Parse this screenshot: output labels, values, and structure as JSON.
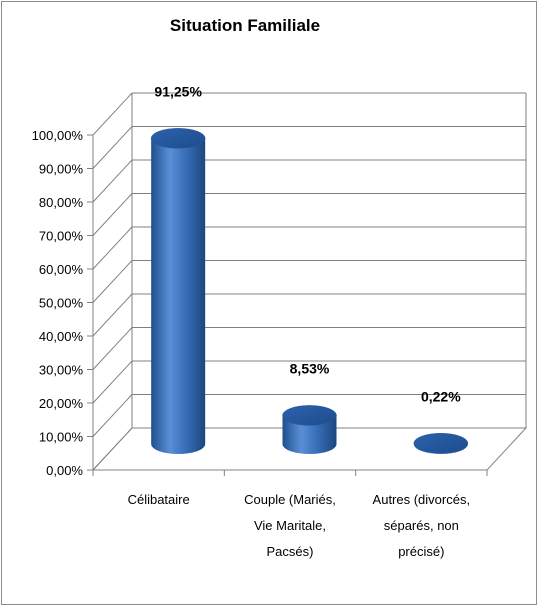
{
  "chart_data": {
    "type": "bar",
    "title": "Situation Familiale",
    "xlabel": "",
    "ylabel": "",
    "categories": [
      [
        "Célibataire"
      ],
      [
        "Couple (Mariés,",
        "Vie Maritale,",
        "Pacsés)"
      ],
      [
        "Autres (divorcés,",
        "séparés, non",
        "précisé)"
      ]
    ],
    "values": [
      91.25,
      8.53,
      0.22
    ],
    "data_labels": [
      "91,25%",
      "8,53%",
      "0,22%"
    ],
    "y_ticks": [
      "0,00%",
      "10,00%",
      "20,00%",
      "30,00%",
      "40,00%",
      "50,00%",
      "60,00%",
      "70,00%",
      "80,00%",
      "90,00%",
      "100,00%"
    ],
    "ylim": [
      0,
      100
    ],
    "grid": true,
    "legend": "none",
    "bar_color": "#3a6fb5"
  }
}
